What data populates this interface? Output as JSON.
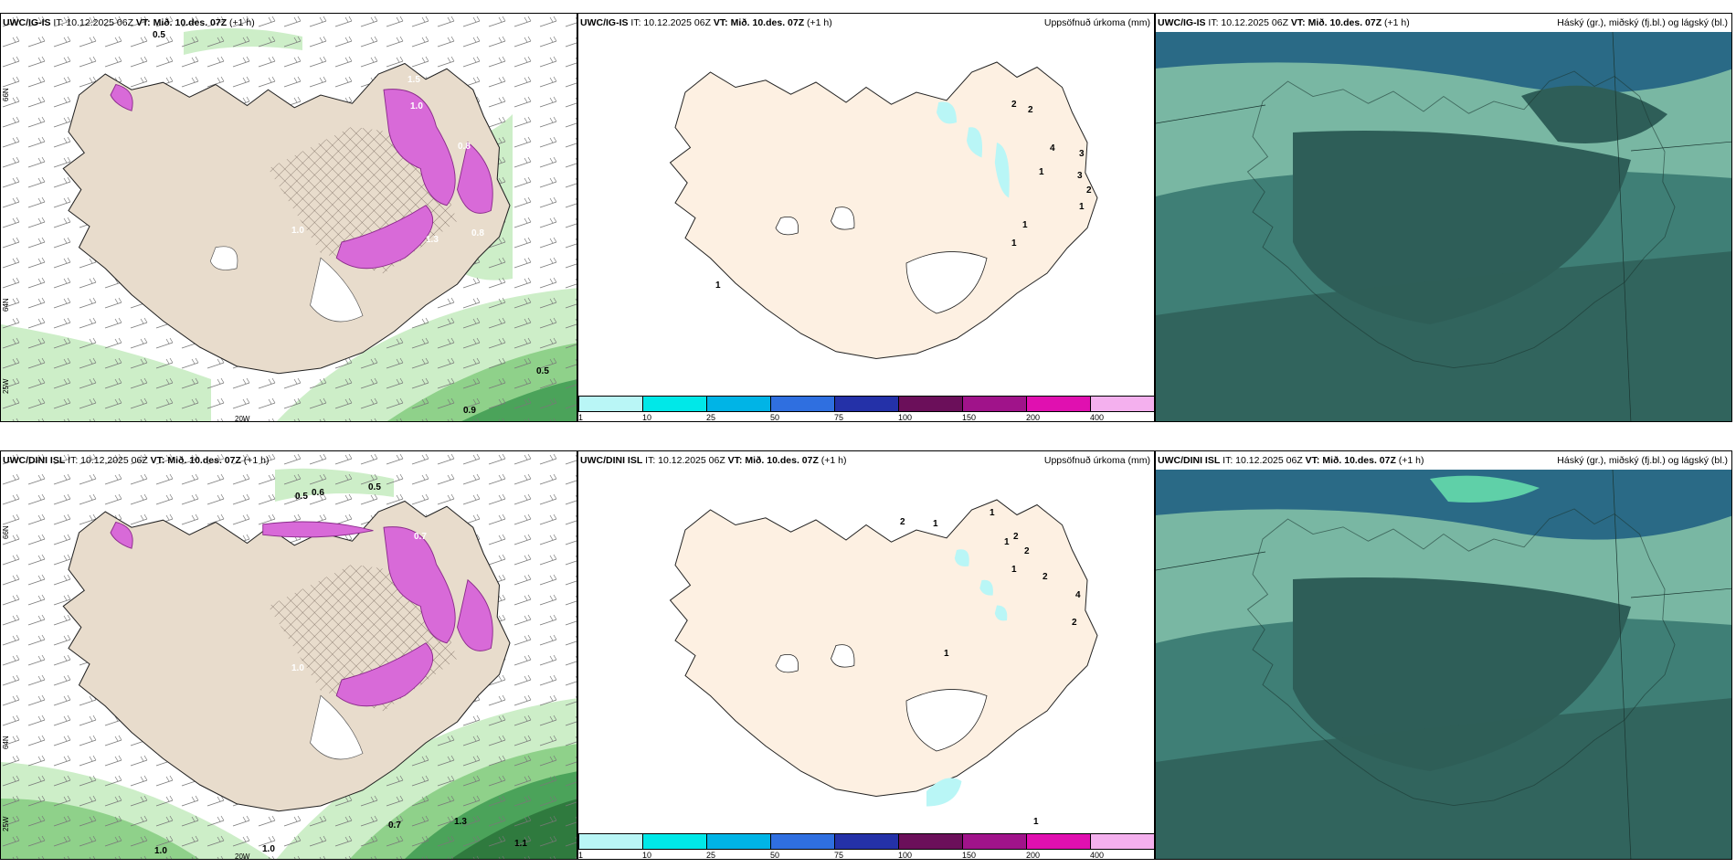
{
  "panels": [
    {
      "model": "UWC/IG-IS",
      "init": "IT: 10.12.2025 06Z",
      "valid": "VT: Mið. 10.des. 07Z",
      "lead": "(+1 h)",
      "right": ""
    },
    {
      "model": "UWC/IG-IS",
      "init": "IT: 10.12.2025 06Z",
      "valid": "VT: Mið. 10.des. 07Z",
      "lead": "(+1 h)",
      "right": "Uppsöfnuð úrkoma (mm)"
    },
    {
      "model": "UWC/IG-IS",
      "init": "IT: 10.12.2025 06Z",
      "valid": "VT: Mið. 10.des. 07Z",
      "lead": "(+1 h)",
      "right": "Háský (gr.), miðský (fj.bl.) og lágský (bl.)"
    },
    {
      "model": "UWC/DINI ISL",
      "init": "IT: 10.12.2025 06Z",
      "valid": "VT: Mið. 10.des. 07Z",
      "lead": "(+1 h)",
      "right": ""
    },
    {
      "model": "UWC/DINI ISL",
      "init": "IT: 10.12.2025 06Z",
      "valid": "VT: Mið. 10.des. 07Z",
      "lead": "(+1 h)",
      "right": "Uppsöfnuð úrkoma (mm)"
    },
    {
      "model": "UWC/DINI ISL",
      "init": "IT: 10.12.2025 06Z",
      "valid": "VT: Mið. 10.des. 07Z",
      "lead": "(+1 h)",
      "right": "Háský (gr.), miðský (fj.bl.) og lágský (bl.)"
    }
  ],
  "lat_lon_labels": {
    "lat66": "66N",
    "lat64": "64N",
    "lon25": "25W",
    "lon20": "20W"
  },
  "precip_legend": {
    "ticks": [
      "1",
      "10",
      "25",
      "50",
      "75",
      "100",
      "150",
      "200",
      "400"
    ],
    "colors": [
      "#b9f6f6",
      "#00e8e8",
      "#00b4e6",
      "#2f6fe0",
      "#2431a8",
      "#6b0f5a",
      "#a0138a",
      "#e010b0",
      "#f4b0ee"
    ]
  },
  "wind_labels_top": [
    "0.5",
    "0.5",
    "0.9",
    "1.0",
    "1.3",
    "1.5",
    "1.0",
    "0.8",
    "0.8"
  ],
  "wind_labels_bottom": [
    "0.5",
    "0.7",
    "1.0",
    "1.0",
    "1.3",
    "0.6",
    "0.5",
    "1.1",
    "1.0",
    "0.7"
  ],
  "precip_values_top": [
    "2",
    "2",
    "4",
    "3",
    "1",
    "3",
    "1",
    "1",
    "1",
    "2",
    "1"
  ],
  "precip_values_bottom": [
    "2",
    "1",
    "1",
    "2",
    "1",
    "2",
    "2",
    "4",
    "2",
    "1",
    "1",
    "1"
  ],
  "colors": {
    "land": "#e8dccc",
    "sea_green1": "#cdeec8",
    "sea_green2": "#8fd18a",
    "sea_green3": "#4ba35a",
    "pink": "#d86ad8",
    "precip_land": "#fdf0e2",
    "cloud_dark": "#2e5e58",
    "cloud_mid": "#3f7f76",
    "cloud_light": "#79b7a3",
    "cloud_blue": "#2a6a86"
  }
}
